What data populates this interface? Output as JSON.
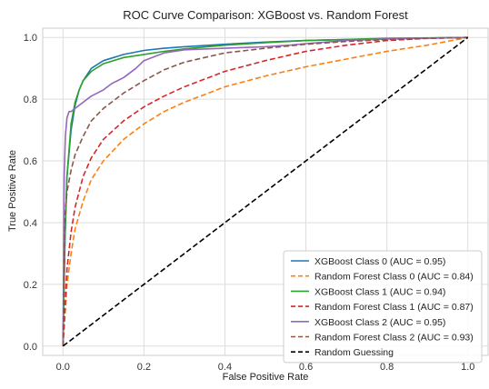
{
  "chart_data": {
    "type": "line",
    "title": "ROC Curve Comparison: XGBoost vs. Random Forest",
    "xlabel": "False Positive Rate",
    "ylabel": "True Positive Rate",
    "xlim": [
      -0.05,
      1.05
    ],
    "ylim": [
      -0.03,
      1.03
    ],
    "xticks": [
      "0.0",
      "0.2",
      "0.4",
      "0.6",
      "0.8",
      "1.0"
    ],
    "yticks": [
      "0.0",
      "0.2",
      "0.4",
      "0.6",
      "0.8",
      "1.0"
    ],
    "grid": true,
    "legend_position": "bottom-right",
    "series": [
      {
        "name": "XGBoost Class 0 (AUC = 0.95)",
        "color": "#1f77b4",
        "dash": "solid",
        "x": [
          0,
          0.005,
          0.01,
          0.02,
          0.03,
          0.04,
          0.05,
          0.07,
          0.1,
          0.15,
          0.2,
          0.25,
          0.3,
          0.4,
          0.5,
          0.6,
          0.7,
          0.8,
          0.9,
          1.0
        ],
        "y": [
          0,
          0.35,
          0.55,
          0.7,
          0.78,
          0.83,
          0.86,
          0.9,
          0.925,
          0.945,
          0.958,
          0.965,
          0.97,
          0.978,
          0.985,
          0.99,
          0.993,
          0.996,
          0.998,
          1.0
        ]
      },
      {
        "name": "Random Forest Class 0 (AUC = 0.84)",
        "color": "#ff7f0e",
        "dash": "dashed",
        "x": [
          0,
          0.01,
          0.02,
          0.03,
          0.05,
          0.07,
          0.1,
          0.15,
          0.2,
          0.25,
          0.3,
          0.4,
          0.5,
          0.6,
          0.7,
          0.8,
          0.9,
          1.0
        ],
        "y": [
          0,
          0.2,
          0.3,
          0.38,
          0.47,
          0.54,
          0.6,
          0.67,
          0.72,
          0.76,
          0.79,
          0.84,
          0.875,
          0.905,
          0.93,
          0.955,
          0.975,
          1.0
        ]
      },
      {
        "name": "XGBoost Class 1 (AUC = 0.94)",
        "color": "#2ca02c",
        "dash": "solid",
        "x": [
          0,
          0.005,
          0.01,
          0.02,
          0.03,
          0.04,
          0.05,
          0.07,
          0.1,
          0.15,
          0.2,
          0.25,
          0.3,
          0.4,
          0.5,
          0.6,
          0.8,
          1.0
        ],
        "y": [
          0,
          0.35,
          0.55,
          0.72,
          0.79,
          0.83,
          0.86,
          0.89,
          0.915,
          0.935,
          0.945,
          0.955,
          0.963,
          0.975,
          0.983,
          0.99,
          0.997,
          1.0
        ]
      },
      {
        "name": "Random Forest Class 1 (AUC = 0.87)",
        "color": "#d62728",
        "dash": "dashed",
        "x": [
          0,
          0.01,
          0.02,
          0.03,
          0.05,
          0.07,
          0.1,
          0.15,
          0.2,
          0.25,
          0.3,
          0.4,
          0.5,
          0.6,
          0.7,
          0.8,
          0.9,
          1.0
        ],
        "y": [
          0,
          0.25,
          0.37,
          0.45,
          0.55,
          0.61,
          0.67,
          0.73,
          0.775,
          0.81,
          0.84,
          0.89,
          0.925,
          0.955,
          0.975,
          0.99,
          0.997,
          1.0
        ]
      },
      {
        "name": "XGBoost Class 2 (AUC = 0.95)",
        "color": "#9467bd",
        "dash": "solid",
        "x": [
          0,
          0.003,
          0.006,
          0.01,
          0.015,
          0.02,
          0.03,
          0.05,
          0.07,
          0.1,
          0.12,
          0.15,
          0.18,
          0.2,
          0.25,
          0.3,
          0.4,
          0.5,
          0.56,
          0.6,
          0.7,
          0.8,
          0.9,
          1.0
        ],
        "y": [
          0,
          0.55,
          0.68,
          0.74,
          0.76,
          0.76,
          0.77,
          0.79,
          0.81,
          0.83,
          0.85,
          0.87,
          0.9,
          0.925,
          0.95,
          0.96,
          0.965,
          0.97,
          0.975,
          0.98,
          0.99,
          0.995,
          0.998,
          1.0
        ]
      },
      {
        "name": "Random Forest Class 2 (AUC = 0.93)",
        "color": "#8c564b",
        "dash": "dashed",
        "x": [
          0,
          0.005,
          0.01,
          0.02,
          0.03,
          0.05,
          0.07,
          0.1,
          0.12,
          0.15,
          0.2,
          0.25,
          0.3,
          0.4,
          0.5,
          0.6,
          0.7,
          0.8,
          0.9,
          1.0
        ],
        "y": [
          0,
          0.42,
          0.5,
          0.57,
          0.62,
          0.68,
          0.73,
          0.77,
          0.79,
          0.82,
          0.86,
          0.895,
          0.92,
          0.95,
          0.965,
          0.978,
          0.987,
          0.993,
          0.997,
          1.0
        ]
      },
      {
        "name": "Random Guessing",
        "color": "#000000",
        "dash": "dashed",
        "x": [
          0,
          1
        ],
        "y": [
          0,
          1
        ]
      }
    ]
  }
}
